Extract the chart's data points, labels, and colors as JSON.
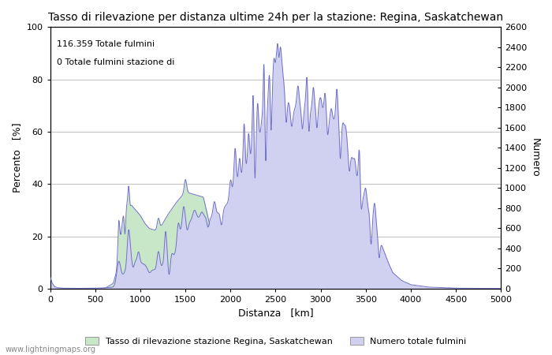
{
  "title": "Tasso di rilevazione per distanza ultime 24h per la stazione: Regina, Saskatchewan",
  "xlabel": "Distanza   [km]",
  "ylabel_left": "Percento   [%]",
  "ylabel_right": "Numero",
  "annotation_line1": "116.359 Totale fulmini",
  "annotation_line2": "0 Totale fulmini stazione di",
  "xlim": [
    0,
    5000
  ],
  "ylim_left": [
    0,
    100
  ],
  "ylim_right": [
    0,
    2600
  ],
  "xticks": [
    0,
    500,
    1000,
    1500,
    2000,
    2500,
    3000,
    3500,
    4000,
    4500,
    5000
  ],
  "yticks_left": [
    0,
    20,
    40,
    60,
    80,
    100
  ],
  "yticks_right": [
    0,
    200,
    400,
    600,
    800,
    1000,
    1200,
    1400,
    1600,
    1800,
    2000,
    2200,
    2400,
    2600
  ],
  "legend_label_green": "Tasso di rilevazione stazione Regina, Saskatchewan",
  "legend_label_blue": "Numero totale fulmini",
  "watermark": "www.lightningmaps.org",
  "bg_color": "#ffffff",
  "grid_color": "#c0c0c0",
  "fill_green_color": "#c8e6c8",
  "fill_blue_color": "#d0d0f0",
  "line_color": "#7070c8",
  "title_fontsize": 10
}
